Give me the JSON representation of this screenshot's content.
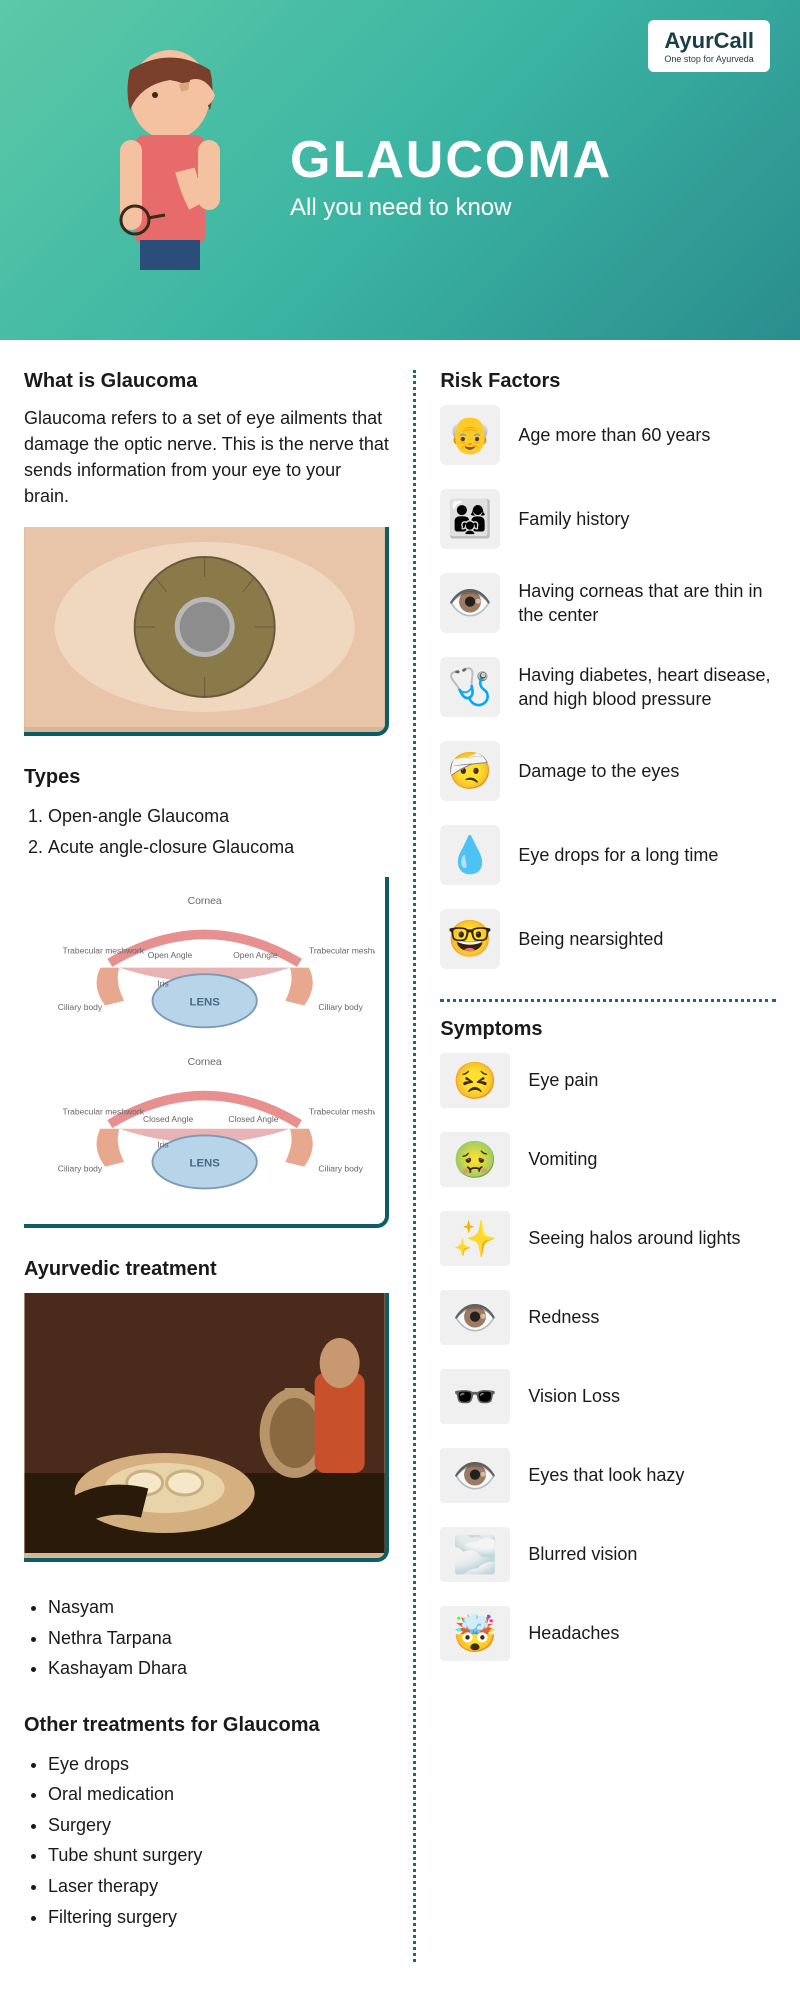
{
  "logo": {
    "name": "AyurCall",
    "tagline": "One stop for Ayurveda"
  },
  "header": {
    "title": "GLAUCOMA",
    "subtitle": "All you need to know"
  },
  "definition": {
    "heading": "What is Glaucoma",
    "text": "Glaucoma refers to a set of eye ailments that damage the optic nerve. This is the nerve that sends information from your eye to your brain."
  },
  "types": {
    "heading": "Types",
    "items": [
      "Open-angle Glaucoma",
      "Acute angle-closure Glaucoma"
    ],
    "diagram_labels": {
      "cornea": "Cornea",
      "trabecular": "Trabecular meshwork",
      "open_angle": "Open Angle",
      "closed_angle": "Closed Angle",
      "iris": "Iris",
      "lens": "LENS",
      "ciliary": "Ciliary body"
    }
  },
  "ayurvedic": {
    "heading": "Ayurvedic treatment",
    "items": [
      "Nasyam",
      "Nethra Tarpana",
      "Kashayam Dhara"
    ]
  },
  "other_treatments": {
    "heading": "Other treatments for Glaucoma",
    "items": [
      "Eye drops",
      "Oral medication",
      "Surgery",
      "Tube shunt surgery",
      "Laser therapy",
      "Filtering surgery"
    ]
  },
  "risk_factors": {
    "heading": "Risk Factors",
    "items": [
      {
        "icon": "👴",
        "label": "Age more than 60 years"
      },
      {
        "icon": "👨‍👩‍👧",
        "label": "Family history"
      },
      {
        "icon": "👁️",
        "label": "Having corneas that are thin in the center"
      },
      {
        "icon": "🩺",
        "label": "Having diabetes, heart disease, and high blood pressure"
      },
      {
        "icon": "🤕",
        "label": "Damage to the eyes"
      },
      {
        "icon": "💧",
        "label": "Eye drops for a long time"
      },
      {
        "icon": "🤓",
        "label": "Being nearsighted"
      }
    ]
  },
  "symptoms": {
    "heading": "Symptoms",
    "items": [
      {
        "icon": "😣",
        "label": "Eye pain"
      },
      {
        "icon": "🤢",
        "label": "Vomiting"
      },
      {
        "icon": "✨",
        "label": "Seeing halos around lights"
      },
      {
        "icon": "👁️",
        "label": "Redness"
      },
      {
        "icon": "🕶️",
        "label": "Vision Loss"
      },
      {
        "icon": "👁️",
        "label": "Eyes that look hazy"
      },
      {
        "icon": "🌫️",
        "label": "Blurred vision"
      },
      {
        "icon": "🤯",
        "label": "Headaches"
      }
    ]
  },
  "styling": {
    "header_gradient": [
      "#5cc9a7",
      "#3bb5a3",
      "#2a8d8d"
    ],
    "accent_border": "#0e5d66",
    "dotted_divider": "#1a6b6b",
    "title_color": "#ffffff",
    "body_text_color": "#1a1a1a",
    "title_fontsize": 52,
    "subtitle_fontsize": 24,
    "h3_fontsize": 20,
    "body_fontsize": 18
  }
}
